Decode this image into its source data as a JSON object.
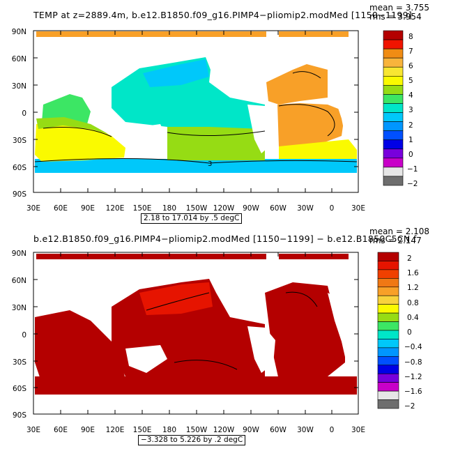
{
  "panels": [
    {
      "title": "TEMP at z=2889.4m, b.e12.B1850.f09_g16.PIMP4−pliomip2.modMed [1150−1199]",
      "mean": "mean = 3.755",
      "rms": "rms = 3.954",
      "range": "2.18 to 17.014 by .5 degC",
      "contour_label": "3",
      "colorbar_labels": [
        "8",
        "7",
        "6",
        "5",
        "4",
        "3",
        "2",
        "1",
        "0",
        "−1",
        "−2"
      ],
      "colorbar_colors": [
        "#b40000",
        "#f01400",
        "#f08c14",
        "#f8b43c",
        "#f8e632",
        "#fafa00",
        "#96dc14",
        "#3ce664",
        "#00e6c8",
        "#00c8fa",
        "#0096ff",
        "#0050ff",
        "#0000e6",
        "#7800dc",
        "#c800c8",
        "#e6e6e6",
        "#6e6e6e"
      ]
    },
    {
      "title": "b.e12.B1850.f09_g16.PIMP4−pliomip2.modMed [1150−1199] − b.e12.B1850C5CN.f",
      "mean": "mean = 2.108",
      "rms": "rms = 2.147",
      "range": "−3.328 to 5.226 by .2 degC",
      "colorbar_labels": [
        "2",
        "1.6",
        "1.2",
        "0.8",
        "0.4",
        "0",
        "−0.4",
        "−0.8",
        "−1.2",
        "−1.6",
        "−2"
      ],
      "colorbar_colors": [
        "#b40000",
        "#e61400",
        "#f04000",
        "#f07814",
        "#f8a028",
        "#f8d23c",
        "#fafa00",
        "#96dc14",
        "#3ce664",
        "#00e6c8",
        "#00c8fa",
        "#0096ff",
        "#0050ff",
        "#0000e6",
        "#7800dc",
        "#c800c8",
        "#e6e6e6",
        "#6e6e6e"
      ]
    }
  ],
  "axes": {
    "lat_labels": [
      "90N",
      "60N",
      "30N",
      "0",
      "30S",
      "60S",
      "90S"
    ],
    "lon_labels": [
      "30E",
      "60E",
      "90E",
      "120E",
      "150E",
      "180",
      "150W",
      "120W",
      "90W",
      "60W",
      "30W",
      "0",
      "30E"
    ]
  },
  "colors": {
    "land": "#ffffff",
    "upper_atlantic": "#f8a028",
    "upper_pacific": "#00e6c8",
    "upper_indian": "#fafa00",
    "upper_indian_north": "#3ce664",
    "upper_southern": "#96dc14",
    "upper_band": "#00c8fa",
    "lower_ocean": "#b40000",
    "lower_north_pacific": "#e61400"
  }
}
